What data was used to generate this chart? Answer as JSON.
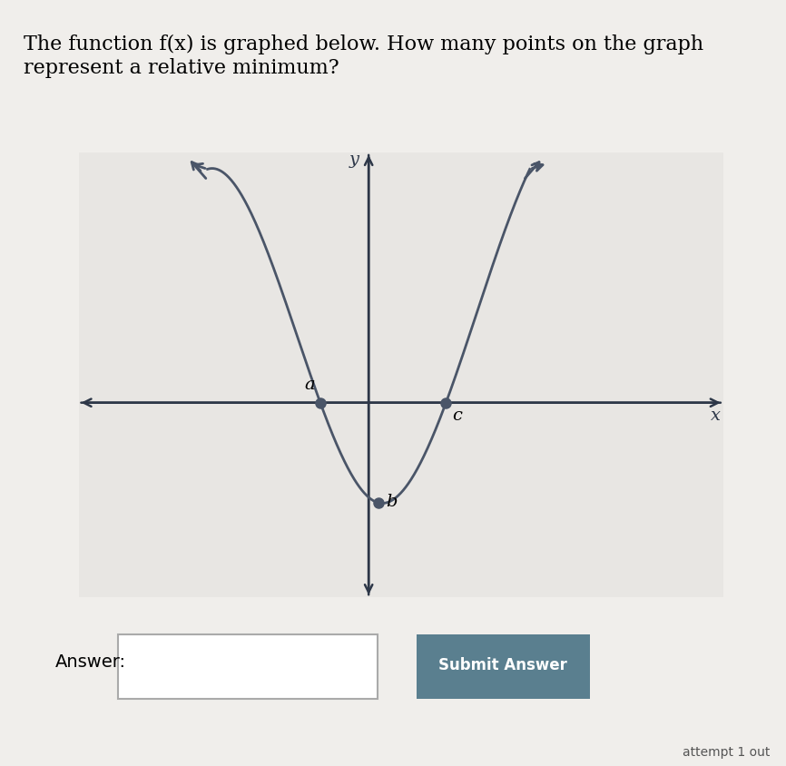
{
  "title": "The function f(x) is graphed below. How many points on the graph\nrepresent a relative minimum?",
  "title_fontsize": 16,
  "background_color": "#f0eeeb",
  "graph_bg": "#e8e6e3",
  "curve_color": "#4a5568",
  "axis_color": "#2d3748",
  "label_a": "a",
  "label_b": "b",
  "label_c": "c",
  "label_x": "x",
  "label_y": "y",
  "answer_label": "Answer:",
  "submit_label": "Submit Answer",
  "attempt_label": "attempt 1 out",
  "submit_color": "#5a7f8f",
  "dot_color": "#4a5568",
  "dot_size": 8
}
